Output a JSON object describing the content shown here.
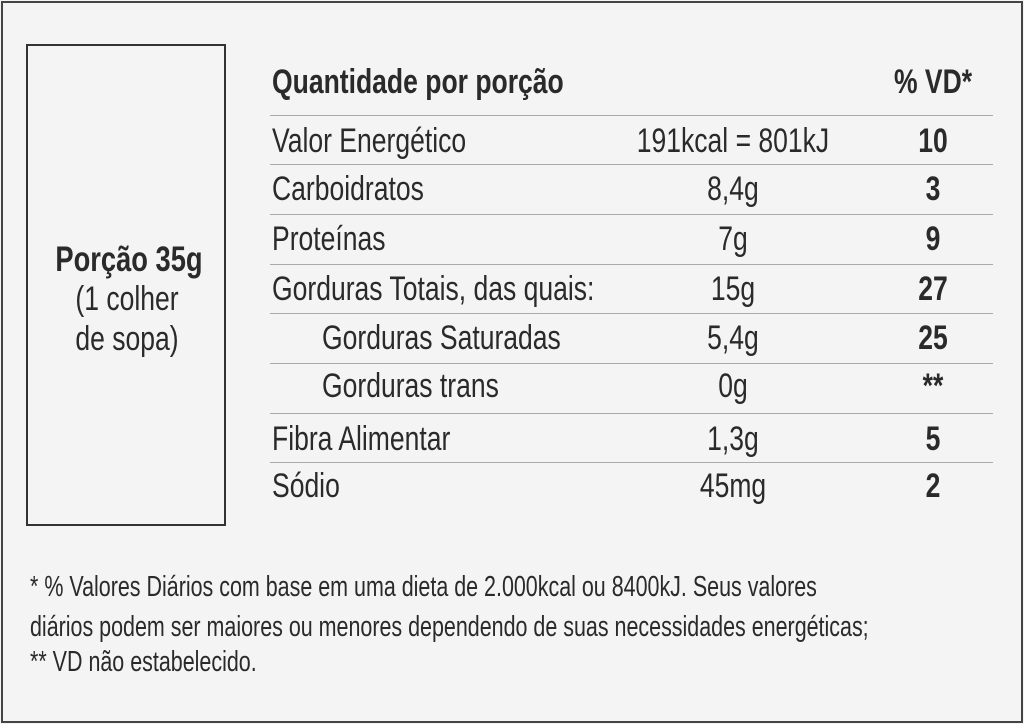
{
  "serving": {
    "label": "Porção 35g",
    "note_lines": [
      "(1 colher",
      "de sopa)"
    ]
  },
  "table": {
    "header": [
      "Quantidade por porção",
      "% VD*"
    ],
    "rows": [
      [
        "Valor Energético",
        "191kcal = 801kJ",
        10
      ],
      [
        "Carboidratos",
        "8,4g",
        3
      ],
      [
        "Proteínas",
        "7g",
        9
      ],
      [
        "Gorduras Totais, das quais:",
        "15g",
        27
      ],
      [
        "Gorduras Saturadas",
        "5,4g",
        25
      ],
      [
        "Gorduras trans",
        "0g",
        "**"
      ],
      [
        "Fibra Alimentar",
        "1,3g",
        5
      ],
      [
        "Sódio",
        "45mg",
        2
      ]
    ]
  },
  "footnote_lines": [
    "* % Valores Diários com base em uma dieta de 2.000kcal ou 8400kJ. Seus valores",
    "diários podem ser maiores ou menores dependendo de suas necessidades energéticas;",
    "** VD não estabelecido."
  ]
}
